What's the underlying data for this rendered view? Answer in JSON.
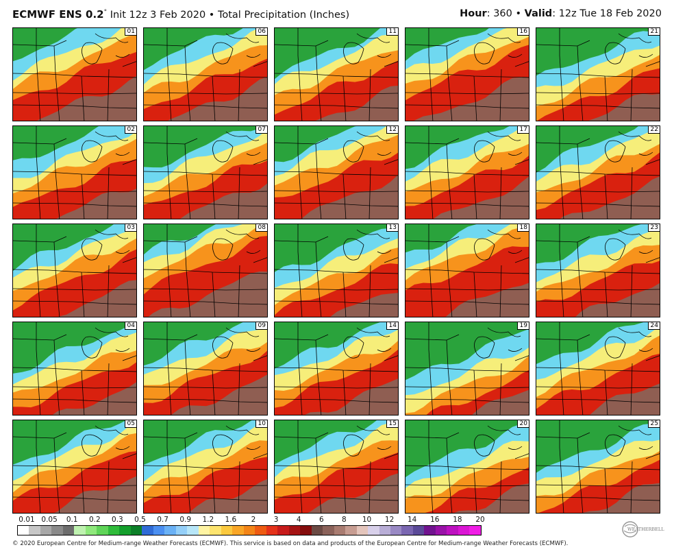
{
  "header": {
    "model": "ECMWF ENS 0.2",
    "degree": "°",
    "init": "Init 12z 3 Feb 2020",
    "bullet": "•",
    "product": "Total Precipitation (Inches)",
    "hour_label": "Hour",
    "hour_value": ": 360",
    "valid_label": "Valid",
    "valid_value": ": 12z Tue 18 Feb 2020"
  },
  "members": [
    "01",
    "06",
    "11",
    "16",
    "21",
    "02",
    "07",
    "12",
    "17",
    "22",
    "03",
    "08",
    "13",
    "18",
    "23",
    "04",
    "09",
    "14",
    "19",
    "24",
    "05",
    "10",
    "15",
    "20",
    "25"
  ],
  "member_bands": [
    [
      0.05,
      0.22,
      0.35,
      0.5,
      0.8
    ],
    [
      0.12,
      0.28,
      0.42,
      0.58,
      0.82
    ],
    [
      0.22,
      0.32,
      0.46,
      0.62,
      0.9
    ],
    [
      0.06,
      0.2,
      0.33,
      0.46,
      0.78
    ],
    [
      0.26,
      0.4,
      0.55,
      0.7,
      0.92
    ],
    [
      0.14,
      0.3,
      0.42,
      0.6,
      0.88
    ],
    [
      0.2,
      0.32,
      0.46,
      0.6,
      0.85
    ],
    [
      0.1,
      0.22,
      0.36,
      0.52,
      0.8
    ],
    [
      0.14,
      0.28,
      0.44,
      0.58,
      0.85
    ],
    [
      0.16,
      0.3,
      0.44,
      0.58,
      0.85
    ],
    [
      0.18,
      0.3,
      0.42,
      0.58,
      0.88
    ],
    [
      0.04,
      0.14,
      0.26,
      0.42,
      0.75
    ],
    [
      0.26,
      0.4,
      0.54,
      0.68,
      0.95
    ],
    [
      0.06,
      0.18,
      0.3,
      0.46,
      0.85
    ],
    [
      0.16,
      0.32,
      0.46,
      0.6,
      0.88
    ],
    [
      0.26,
      0.38,
      0.52,
      0.66,
      0.92
    ],
    [
      0.16,
      0.3,
      0.44,
      0.58,
      0.85
    ],
    [
      0.2,
      0.32,
      0.46,
      0.6,
      0.88
    ],
    [
      0.34,
      0.52,
      0.66,
      0.82,
      0.98
    ],
    [
      0.18,
      0.32,
      0.46,
      0.62,
      0.9
    ],
    [
      0.2,
      0.32,
      0.44,
      0.58,
      0.85
    ],
    [
      0.18,
      0.32,
      0.48,
      0.62,
      0.9
    ],
    [
      0.16,
      0.3,
      0.44,
      0.58,
      0.85
    ],
    [
      0.3,
      0.46,
      0.6,
      0.76,
      0.95
    ],
    [
      0.28,
      0.42,
      0.56,
      0.7,
      0.92
    ]
  ],
  "band_colors": [
    "#2aa33c",
    "#6fd8f0",
    "#f6ee7a",
    "#f7931c",
    "#d9210f",
    "#8f5e52"
  ],
  "colorbar": {
    "labels": [
      "0.01",
      "0.05",
      "0.1",
      "0.2",
      "0.3",
      "0.5",
      "0.7",
      "0.9",
      "1.2",
      "1.6",
      "2",
      "3",
      "4",
      "6",
      "8",
      "10",
      "12",
      "14",
      "16",
      "18",
      "20"
    ],
    "colors": [
      "#ffffff",
      "#c7c7c7",
      "#a8a8a8",
      "#8a8a8a",
      "#6d6d6d",
      "#bff2b0",
      "#8fe87c",
      "#5fd458",
      "#2fbb3a",
      "#149f2c",
      "#0c7f28",
      "#2f6bd6",
      "#4b8ff0",
      "#6ab1f5",
      "#94cff8",
      "#b7e6f8",
      "#fff4a3",
      "#fde46f",
      "#fbc93f",
      "#f9a627",
      "#f38518",
      "#ee5b12",
      "#e4321a",
      "#c71b1b",
      "#a51313",
      "#850d0d",
      "#6b4a44",
      "#8b625a",
      "#a97c71",
      "#c79d92",
      "#e4c5bc",
      "#d8d0ea",
      "#b8add6",
      "#9989c4",
      "#7a66b1",
      "#5b4a98",
      "#71138f",
      "#9912a8",
      "#bd11c0",
      "#da16d4",
      "#f01de6"
    ]
  },
  "logo": {
    "text": "WEATHERBELL"
  },
  "footer": "© 2020 European Centre for Medium-range Weather Forecasts (ECMWF). This service is based on data and products of the European Centre for Medium-range Weather Forecasts (ECMWF)."
}
